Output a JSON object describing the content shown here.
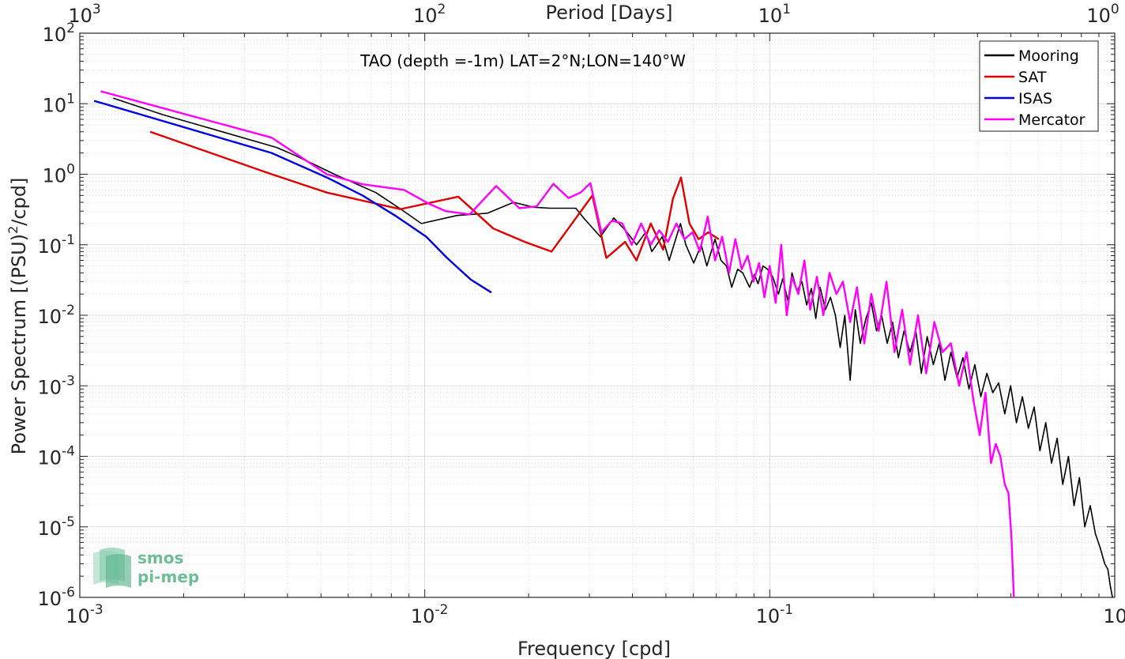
{
  "chart_data": {
    "type": "line",
    "title": "TAO (depth =-1m) LAT=2°N;LON=140°W",
    "xlabel": "Frequency [cpd]",
    "ylabel": "Power Spectrum [(PSU)",
    "ylabel_exp": "2",
    "ylabel_tail": "/cpd]",
    "top_xlabel": "Period [Days]",
    "x_scale": "log",
    "y_scale": "log",
    "xlim": [
      0.001,
      1
    ],
    "ylim": [
      1e-06,
      100
    ],
    "grid": true,
    "legend_position": "top-right",
    "x_ticks": [
      {
        "base": "10",
        "exp": "-3",
        "value": 0.001
      },
      {
        "base": "10",
        "exp": "-2",
        "value": 0.01
      },
      {
        "base": "10",
        "exp": "-1",
        "value": 0.1
      },
      {
        "base": "10",
        "exp": "0",
        "value": 1
      }
    ],
    "top_x_ticks": [
      {
        "base": "10",
        "exp": "3",
        "freq": 0.001
      },
      {
        "base": "10",
        "exp": "2",
        "freq": 0.01
      },
      {
        "base": "10",
        "exp": "1",
        "freq": 0.1
      },
      {
        "base": "10",
        "exp": "0",
        "freq": 1
      }
    ],
    "y_ticks": [
      {
        "base": "10",
        "exp": "2",
        "value": 100
      },
      {
        "base": "10",
        "exp": "1",
        "value": 10
      },
      {
        "base": "10",
        "exp": "0",
        "value": 1
      },
      {
        "base": "10",
        "exp": "-1",
        "value": 0.1
      },
      {
        "base": "10",
        "exp": "-2",
        "value": 0.01
      },
      {
        "base": "10",
        "exp": "-3",
        "value": 0.001
      },
      {
        "base": "10",
        "exp": "-4",
        "value": 0.0001
      },
      {
        "base": "10",
        "exp": "-5",
        "value": 1e-05
      },
      {
        "base": "10",
        "exp": "-6",
        "value": 1e-06
      }
    ],
    "series": [
      {
        "name": "Mooring",
        "color": "#000000",
        "x": [
          0.00125,
          0.00174,
          0.00238,
          0.00372,
          0.00426,
          0.00547,
          0.00721,
          0.00852,
          0.00978,
          0.0124,
          0.0152,
          0.0181,
          0.0207,
          0.0231,
          0.0274,
          0.0291,
          0.0323,
          0.0353,
          0.0386,
          0.0411,
          0.0437,
          0.0455,
          0.0488,
          0.0511,
          0.0551,
          0.0571,
          0.0602,
          0.0633,
          0.0657,
          0.0694,
          0.0722,
          0.0749,
          0.0776,
          0.0807,
          0.0835,
          0.0874,
          0.0903,
          0.0925,
          0.0956,
          0.0985,
          0.102,
          0.106,
          0.109,
          0.113,
          0.116,
          0.12,
          0.124,
          0.128,
          0.132,
          0.136,
          0.14,
          0.145,
          0.15,
          0.155,
          0.16,
          0.165,
          0.171,
          0.177,
          0.183,
          0.19,
          0.197,
          0.204,
          0.211,
          0.219,
          0.227,
          0.236,
          0.245,
          0.255,
          0.265,
          0.275,
          0.286,
          0.298,
          0.31,
          0.322,
          0.335,
          0.349,
          0.363,
          0.378,
          0.393,
          0.409,
          0.426,
          0.443,
          0.461,
          0.48,
          0.499,
          0.519,
          0.54,
          0.562,
          0.584,
          0.607,
          0.631,
          0.656,
          0.681,
          0.707,
          0.734,
          0.762,
          0.79,
          0.819,
          0.849,
          0.879,
          0.908,
          0.935,
          0.955,
          0.97,
          0.985
        ],
        "y": [
          12.0,
          7.0,
          4.5,
          2.4,
          1.8,
          1.0,
          0.55,
          0.32,
          0.2,
          0.26,
          0.28,
          0.4,
          0.34,
          0.33,
          0.33,
          0.23,
          0.13,
          0.24,
          0.15,
          0.1,
          0.15,
          0.08,
          0.13,
          0.06,
          0.2,
          0.1,
          0.055,
          0.1,
          0.05,
          0.12,
          0.06,
          0.05,
          0.025,
          0.045,
          0.04,
          0.025,
          0.038,
          0.028,
          0.05,
          0.045,
          0.035,
          0.02,
          0.033,
          0.016,
          0.04,
          0.022,
          0.03,
          0.014,
          0.024,
          0.009,
          0.025,
          0.012,
          0.018,
          0.01,
          0.0035,
          0.01,
          0.0012,
          0.012,
          0.004,
          0.009,
          0.015,
          0.006,
          0.01,
          0.004,
          0.008,
          0.0025,
          0.006,
          0.003,
          0.006,
          0.0015,
          0.005,
          0.002,
          0.004,
          0.0012,
          0.003,
          0.0013,
          0.0025,
          0.0009,
          0.002,
          0.0007,
          0.0015,
          0.0008,
          0.0011,
          0.0004,
          0.001,
          0.0003,
          0.0007,
          0.00025,
          0.0005,
          0.00012,
          0.0003,
          8e-05,
          0.00018,
          4e-05,
          0.0001,
          2e-05,
          5e-05,
          1e-05,
          2e-05,
          8e-06,
          5e-06,
          3e-06,
          2.5e-06,
          1.5e-06,
          1e-06
        ]
      },
      {
        "name": "SAT",
        "color": "#e00000",
        "x": [
          0.0016,
          0.0036,
          0.0052,
          0.0085,
          0.0125,
          0.0158,
          0.0195,
          0.0233,
          0.0306,
          0.0336,
          0.0381,
          0.0411,
          0.0452,
          0.0491,
          0.0524,
          0.0553,
          0.0585,
          0.0622,
          0.0663,
          0.0712
        ],
        "y": [
          4.0,
          1.0,
          0.55,
          0.32,
          0.48,
          0.17,
          0.11,
          0.08,
          0.5,
          0.065,
          0.11,
          0.06,
          0.2,
          0.085,
          0.45,
          0.9,
          0.2,
          0.12,
          0.15,
          0.12
        ]
      },
      {
        "name": "ISAS",
        "color": "#0000e0",
        "x": [
          0.0011,
          0.0036,
          0.0052,
          0.0066,
          0.0083,
          0.0101,
          0.0116,
          0.0136,
          0.0156
        ],
        "y": [
          11.0,
          2.0,
          0.9,
          0.5,
          0.25,
          0.13,
          0.065,
          0.032,
          0.021
        ]
      },
      {
        "name": "Mercator",
        "color": "#ff00ff",
        "x": [
          0.00115,
          0.0036,
          0.0052,
          0.0066,
          0.0087,
          0.0103,
          0.0115,
          0.0135,
          0.0161,
          0.0188,
          0.0211,
          0.0236,
          0.0261,
          0.0283,
          0.0302,
          0.0325,
          0.0349,
          0.0374,
          0.0398,
          0.0424,
          0.0452,
          0.0478,
          0.0507,
          0.0536,
          0.0566,
          0.0597,
          0.0627,
          0.0661,
          0.0694,
          0.0728,
          0.0762,
          0.0795,
          0.0829,
          0.0863,
          0.0897,
          0.0931,
          0.0965,
          0.1,
          0.104,
          0.108,
          0.112,
          0.116,
          0.121,
          0.126,
          0.131,
          0.137,
          0.143,
          0.149,
          0.156,
          0.163,
          0.171,
          0.179,
          0.188,
          0.197,
          0.207,
          0.218,
          0.23,
          0.242,
          0.255,
          0.269,
          0.284,
          0.3,
          0.317,
          0.335,
          0.354,
          0.372,
          0.39,
          0.406,
          0.422,
          0.438,
          0.452,
          0.466,
          0.48,
          0.492,
          0.502,
          0.51
        ],
        "y": [
          15.0,
          3.3,
          1.0,
          0.72,
          0.6,
          0.38,
          0.3,
          0.27,
          0.68,
          0.33,
          0.35,
          0.73,
          0.46,
          0.55,
          0.75,
          0.15,
          0.22,
          0.2,
          0.1,
          0.2,
          0.1,
          0.16,
          0.11,
          0.2,
          0.12,
          0.15,
          0.08,
          0.25,
          0.06,
          0.13,
          0.04,
          0.12,
          0.045,
          0.07,
          0.03,
          0.055,
          0.018,
          0.05,
          0.015,
          0.1,
          0.01,
          0.035,
          0.02,
          0.06,
          0.012,
          0.035,
          0.01,
          0.04,
          0.02,
          0.03,
          0.008,
          0.025,
          0.004,
          0.02,
          0.006,
          0.03,
          0.003,
          0.012,
          0.002,
          0.01,
          0.0015,
          0.008,
          0.003,
          0.004,
          0.001,
          0.003,
          0.0006,
          0.0002,
          0.0008,
          8e-05,
          0.00015,
          0.0001,
          4e-05,
          3e-05,
          7e-06,
          1e-06
        ]
      }
    ]
  },
  "logo": {
    "line1": "smos",
    "line2": "pi-mep"
  }
}
